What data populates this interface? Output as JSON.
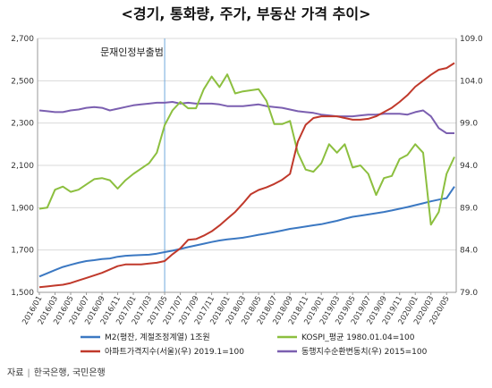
{
  "title": "<경기, 통화량, 주가, 부동산 가격 추이>",
  "source_label": "자료",
  "source_text": "한국은행, 국민은행",
  "chart_data": {
    "type": "line",
    "x": [
      "2016/01",
      "2016/02",
      "2016/03",
      "2016/04",
      "2016/05",
      "2016/06",
      "2016/07",
      "2016/08",
      "2016/09",
      "2016/10",
      "2016/11",
      "2016/12",
      "2017/01",
      "2017/02",
      "2017/03",
      "2017/04",
      "2017/05",
      "2017/06",
      "2017/07",
      "2017/08",
      "2017/09",
      "2017/10",
      "2017/11",
      "2017/12",
      "2018/01",
      "2018/02",
      "2018/03",
      "2018/04",
      "2018/05",
      "2018/06",
      "2018/07",
      "2018/08",
      "2018/09",
      "2018/10",
      "2018/11",
      "2018/12",
      "2019/01",
      "2019/02",
      "2019/03",
      "2019/04",
      "2019/05",
      "2019/06",
      "2019/07",
      "2019/08",
      "2019/09",
      "2019/10",
      "2019/11",
      "2019/12",
      "2020/01",
      "2020/02",
      "2020/03",
      "2020/04",
      "2020/05",
      "2020/06"
    ],
    "x_tick_labels": [
      "2016/01",
      "2016/03",
      "2016/05",
      "2016/07",
      "2016/09",
      "2016/11",
      "2017/01",
      "2017/03",
      "2017/05",
      "2017/07",
      "2017/09",
      "2017/11",
      "2018/01",
      "2018/03",
      "2018/05",
      "2018/07",
      "2018/09",
      "2018/11",
      "2019/01",
      "2019/03",
      "2019/05",
      "2019/07",
      "2019/09",
      "2019/11",
      "2020/01",
      "2020/03",
      "2020/05"
    ],
    "y_left": {
      "ticks": [
        "1,500",
        "1,700",
        "1,900",
        "2,100",
        "2,300",
        "2,500",
        "2,700"
      ],
      "range": [
        1500,
        2700
      ]
    },
    "y_right": {
      "ticks": [
        "79.0",
        "84.0",
        "89.0",
        "94.0",
        "99.0",
        "104.0",
        "109.0"
      ],
      "range": [
        79,
        109
      ]
    },
    "annotation": {
      "label": "문재인정부출범",
      "x": "2017/05"
    },
    "series": [
      {
        "name": "M2(평잔, 계절조정계열) 1조원",
        "axis": "left",
        "color": "#3b78c2",
        "values": [
          1575,
          1590,
          1605,
          1620,
          1630,
          1640,
          1648,
          1652,
          1657,
          1660,
          1668,
          1673,
          1675,
          1676,
          1678,
          1683,
          1690,
          1697,
          1705,
          1714,
          1722,
          1730,
          1738,
          1745,
          1750,
          1754,
          1758,
          1765,
          1772,
          1778,
          1785,
          1792,
          1800,
          1805,
          1811,
          1817,
          1822,
          1830,
          1838,
          1848,
          1857,
          1862,
          1868,
          1874,
          1880,
          1887,
          1895,
          1903,
          1912,
          1921,
          1930,
          1938,
          1945,
          2000
        ]
      },
      {
        "name": "KOSPI_평균 1980.01.04=100",
        "axis": "left",
        "color": "#8cbf3f",
        "values": [
          1895,
          1900,
          1985,
          2000,
          1975,
          1985,
          2010,
          2035,
          2040,
          2030,
          1990,
          2030,
          2060,
          2085,
          2110,
          2160,
          2290,
          2360,
          2400,
          2370,
          2370,
          2460,
          2520,
          2470,
          2530,
          2440,
          2450,
          2455,
          2460,
          2405,
          2295,
          2295,
          2310,
          2160,
          2080,
          2070,
          2110,
          2200,
          2160,
          2200,
          2090,
          2100,
          2060,
          1960,
          2040,
          2050,
          2130,
          2150,
          2200,
          2160,
          1820,
          1880,
          2060,
          2140
        ]
      },
      {
        "name": "아파트가격지수(서울)(우) 2019.1=100",
        "axis": "right",
        "color": "#c0392b",
        "values": [
          79.6,
          79.7,
          79.8,
          79.9,
          80.1,
          80.4,
          80.7,
          81.0,
          81.3,
          81.7,
          82.1,
          82.3,
          82.3,
          82.3,
          82.4,
          82.5,
          82.7,
          83.5,
          84.2,
          85.2,
          85.3,
          85.7,
          86.2,
          86.9,
          87.7,
          88.5,
          89.5,
          90.6,
          91.1,
          91.4,
          91.8,
          92.3,
          93.0,
          96.8,
          98.8,
          99.6,
          99.8,
          99.8,
          99.8,
          99.6,
          99.4,
          99.4,
          99.5,
          99.8,
          100.3,
          100.8,
          101.5,
          102.3,
          103.3,
          104.0,
          104.7,
          105.3,
          105.5,
          106.1
        ]
      },
      {
        "name": "동행지수순환변동치(우) 2015=100",
        "axis": "right",
        "color": "#7b5fb0",
        "values": [
          100.5,
          100.4,
          100.3,
          100.3,
          100.5,
          100.6,
          100.8,
          100.9,
          100.8,
          100.5,
          100.7,
          100.9,
          101.1,
          101.2,
          101.3,
          101.4,
          101.4,
          101.5,
          101.3,
          101.4,
          101.3,
          101.3,
          101.3,
          101.2,
          101.0,
          101.0,
          101.0,
          101.1,
          101.2,
          101.0,
          100.9,
          100.8,
          100.6,
          100.4,
          100.3,
          100.2,
          100.0,
          99.9,
          99.8,
          99.8,
          99.8,
          99.9,
          100.0,
          100.0,
          100.1,
          100.1,
          100.1,
          100.0,
          100.3,
          100.5,
          99.8,
          98.4,
          97.8,
          97.8
        ]
      }
    ]
  }
}
